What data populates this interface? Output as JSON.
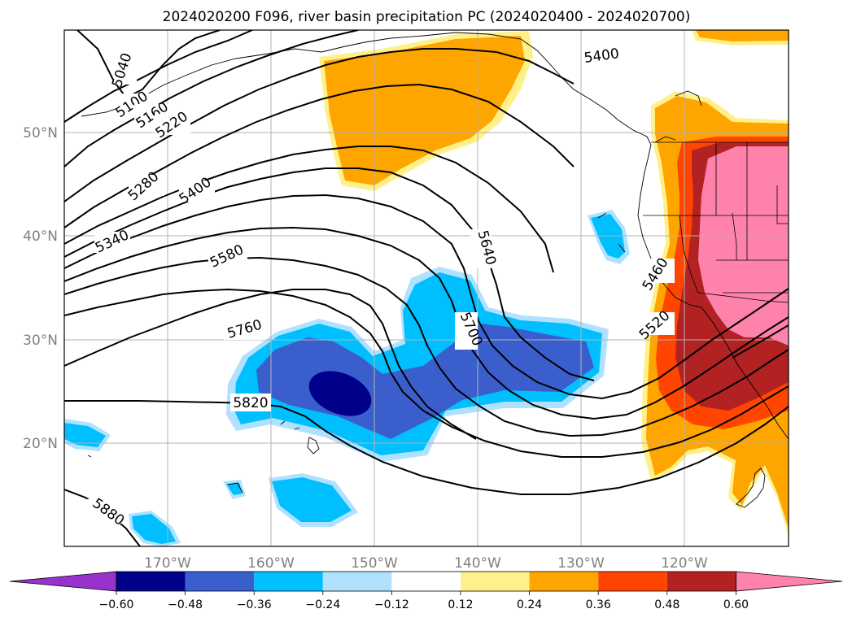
{
  "title": "2024020200 F096, river basin precipitation PC (2024020400 - 2024020700)",
  "lon_labels": [
    "170°W",
    "160°W",
    "150°W",
    "140°W",
    "130°W",
    "120°W"
  ],
  "lat_labels": [
    "50°N",
    "40°N",
    "30°N",
    "20°N"
  ],
  "contour_labels": [
    "5040",
    "5100",
    "5160",
    "5220",
    "5280",
    "5340",
    "5400",
    "5400",
    "5460",
    "5520",
    "5580",
    "5640",
    "5700",
    "5760",
    "5820",
    "5880"
  ],
  "colorbar": {
    "ticks": [
      "−0.60",
      "−0.48",
      "−0.36",
      "−0.24",
      "−0.12",
      "0.12",
      "0.24",
      "0.36",
      "0.48",
      "0.60"
    ],
    "colors": [
      "#9932cc",
      "#00008b",
      "#3a5fcd",
      "#00bfff",
      "#b0e2ff",
      "#ffffff",
      "#fff08a",
      "#ffa500",
      "#ff4500",
      "#b22222",
      "#ff82ab"
    ]
  },
  "palette": {
    "deep_navy": "#00008b",
    "royal_blue": "#3a5fcd",
    "sky_blue": "#00bfff",
    "light_blue": "#b0e2ff",
    "pale_yellow": "#fff08a",
    "orange": "#ffa500",
    "orange_red": "#ff4500",
    "firebrick": "#b22222",
    "pink": "#ff82ab"
  }
}
